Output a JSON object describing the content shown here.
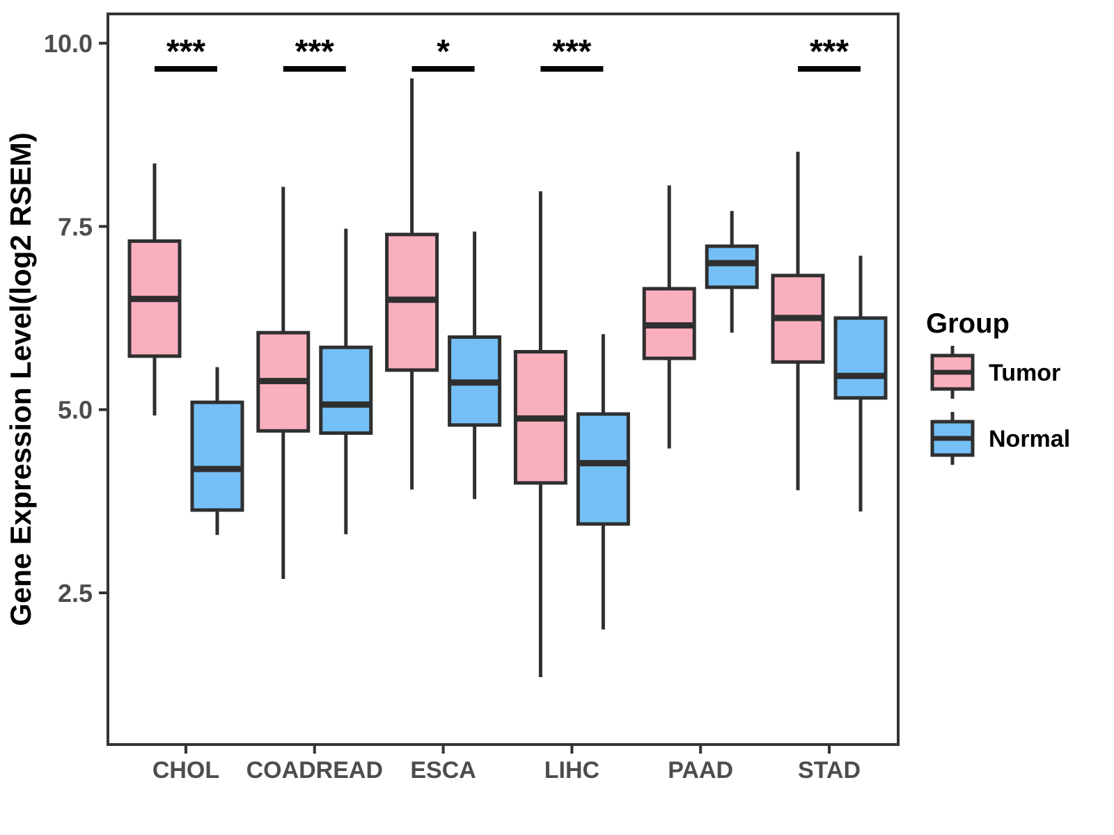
{
  "colors": {
    "tumor_fill": "#FAAFBF",
    "normal_fill": "#74C0F6",
    "box_stroke": "#2F2F2F",
    "panel_border": "#333333",
    "tick_color": "#333333",
    "tick_label_color": "#4D4D4D",
    "axis_title_color": "#000000",
    "significance_color": "#000000",
    "legend_text_color": "#000000",
    "background": "#FFFFFF"
  },
  "chart_data": {
    "type": "boxplot",
    "title": "",
    "xlabel": "",
    "ylabel": "Gene Expression Level(log2 RSEM)",
    "ylim": [
      0.43,
      10.4
    ],
    "yticks": [
      2.5,
      5.0,
      7.5,
      10.0
    ],
    "ytick_labels": [
      "2.5",
      "5.0",
      "7.5",
      "10.0"
    ],
    "grid": "off",
    "legend_position": "right",
    "categories": [
      "CHOL",
      "COADREAD",
      "ESCA",
      "LIHC",
      "PAAD",
      "STAD"
    ],
    "legend": {
      "title": "Group",
      "items": [
        {
          "label": "Tumor",
          "color": "#FAAFBF"
        },
        {
          "label": "Normal",
          "color": "#74C0F6"
        }
      ]
    },
    "significance": [
      {
        "category": "CHOL",
        "label": "***"
      },
      {
        "category": "COADREAD",
        "label": "***"
      },
      {
        "category": "ESCA",
        "label": "*"
      },
      {
        "category": "LIHC",
        "label": "***"
      },
      {
        "category": "STAD",
        "label": "***"
      }
    ],
    "series": [
      {
        "name": "Tumor",
        "color": "#FAAFBF",
        "boxes": [
          {
            "category": "CHOL",
            "low": 4.92,
            "q1": 5.73,
            "median": 6.51,
            "q3": 7.3,
            "high": 8.36
          },
          {
            "category": "COADREAD",
            "low": 2.69,
            "q1": 4.71,
            "median": 5.39,
            "q3": 6.05,
            "high": 8.04
          },
          {
            "category": "ESCA",
            "low": 3.91,
            "q1": 5.54,
            "median": 6.5,
            "q3": 7.39,
            "high": 9.52
          },
          {
            "category": "LIHC",
            "low": 1.35,
            "q1": 4.0,
            "median": 4.88,
            "q3": 5.79,
            "high": 7.98
          },
          {
            "category": "PAAD",
            "low": 4.47,
            "q1": 5.7,
            "median": 6.15,
            "q3": 6.65,
            "high": 8.06
          },
          {
            "category": "STAD",
            "low": 3.9,
            "q1": 5.65,
            "median": 6.25,
            "q3": 6.83,
            "high": 8.52
          }
        ]
      },
      {
        "name": "Normal",
        "color": "#74C0F6",
        "boxes": [
          {
            "category": "CHOL",
            "low": 3.29,
            "q1": 3.63,
            "median": 4.19,
            "q3": 5.1,
            "high": 5.58
          },
          {
            "category": "COADREAD",
            "low": 3.3,
            "q1": 4.68,
            "median": 5.07,
            "q3": 5.85,
            "high": 7.47
          },
          {
            "category": "ESCA",
            "low": 3.78,
            "q1": 4.79,
            "median": 5.37,
            "q3": 5.99,
            "high": 7.43
          },
          {
            "category": "LIHC",
            "low": 2.0,
            "q1": 3.44,
            "median": 4.27,
            "q3": 4.94,
            "high": 6.03
          },
          {
            "category": "PAAD",
            "low": 6.05,
            "q1": 6.67,
            "median": 7.0,
            "q3": 7.23,
            "high": 7.71
          },
          {
            "category": "STAD",
            "low": 3.61,
            "q1": 5.16,
            "median": 5.46,
            "q3": 6.25,
            "high": 7.1
          }
        ]
      }
    ]
  }
}
